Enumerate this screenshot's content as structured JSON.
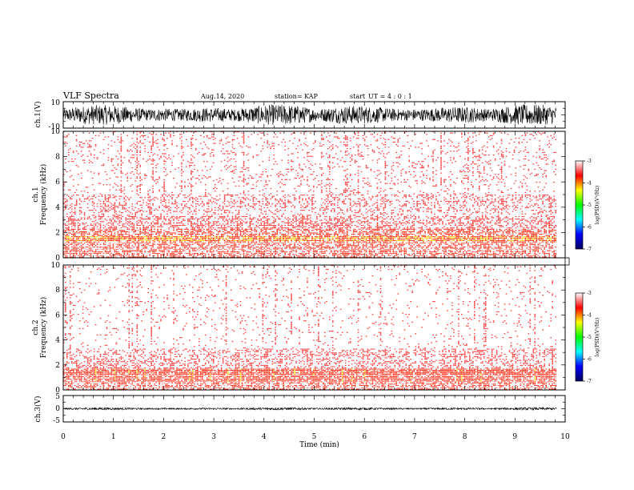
{
  "header": {
    "title": "VLF Spectra",
    "date": "Aug.14, 2020",
    "station": "station= KAP",
    "start_label": "start",
    "start_ut": "UT =  4 : 0  : 1"
  },
  "chart_data": [
    {
      "type": "line",
      "panel": "ch1-waveform",
      "ylabel": "ch.1(V)",
      "ylim": [
        -10,
        10
      ],
      "ytick_labels": [
        "10",
        "-10"
      ],
      "x_range_min": [
        0,
        9.83
      ],
      "amplitude_range": [
        -8,
        8
      ],
      "color": "#000000"
    },
    {
      "type": "heatmap",
      "panel": "ch1-spectrogram",
      "ylabel": "ch.1\nFrequency (kHz)",
      "ylabel_lines": [
        "ch.1",
        "Frequency (kHz)"
      ],
      "ylim": [
        0,
        10
      ],
      "ytick_labels": [
        "0",
        "2",
        "4",
        "6",
        "8",
        "10"
      ],
      "xlim": [
        0,
        10
      ],
      "data_extent_min": 9.83,
      "bands_khz": [
        {
          "from": 0.0,
          "to": 1.3,
          "level": 0.55
        },
        {
          "from": 1.3,
          "to": 1.7,
          "level": 0.85
        },
        {
          "from": 1.7,
          "to": 2.3,
          "level": 0.55
        },
        {
          "from": 2.3,
          "to": 3.3,
          "level": 0.4
        },
        {
          "from": 3.3,
          "to": 3.6,
          "level": 0.15
        },
        {
          "from": 3.6,
          "to": 5.0,
          "level": 0.25
        },
        {
          "from": 5.0,
          "to": 10.0,
          "level": 0.1
        }
      ],
      "colorbar": {
        "label": "log(PSD)(V²/Hz)",
        "min": -7,
        "max": -3,
        "tick_labels": [
          "-3",
          "-4",
          "-5",
          "-6",
          "-7"
        ],
        "colors": [
          "#000060",
          "#0000ff",
          "#00ffff",
          "#00ff00",
          "#ffff00",
          "#ff0000",
          "#ffffff"
        ]
      }
    },
    {
      "type": "heatmap",
      "panel": "ch2-spectrogram",
      "ylabel": "ch.2\nFrequency (kHz)",
      "ylabel_lines": [
        "ch.2",
        "Frequency (kHz)"
      ],
      "ylim": [
        0,
        10
      ],
      "ytick_labels": [
        "0",
        "2",
        "4",
        "6",
        "8",
        "10"
      ],
      "xlim": [
        0,
        10
      ],
      "data_extent_min": 9.83,
      "bands_khz": [
        {
          "from": 0.0,
          "to": 0.6,
          "level": 0.5
        },
        {
          "from": 0.6,
          "to": 1.7,
          "level": 0.8
        },
        {
          "from": 1.7,
          "to": 3.3,
          "level": 0.3
        },
        {
          "from": 3.3,
          "to": 10.0,
          "level": 0.05
        }
      ],
      "colorbar": {
        "label": "log(PSD)(V²/Hz)",
        "min": -7,
        "max": -3,
        "tick_labels": [
          "-3",
          "-4",
          "-5",
          "-6",
          "-7"
        ],
        "colors": [
          "#000060",
          "#0000ff",
          "#00ffff",
          "#00ff00",
          "#ffff00",
          "#ff0000",
          "#ffffff"
        ]
      }
    },
    {
      "type": "line",
      "panel": "ch3-waveform",
      "ylabel": "ch.3(V)",
      "ylim": [
        -5,
        5
      ],
      "ytick_labels": [
        "5",
        "0",
        "-5"
      ],
      "x_range_min": [
        0,
        9.83
      ],
      "amplitude_range": [
        -0.5,
        0.5
      ],
      "color": "#000000"
    }
  ],
  "x_axis": {
    "label": "Time (min)",
    "xlim": [
      0,
      10
    ],
    "tick_labels": [
      "0",
      "1",
      "2",
      "3",
      "4",
      "5",
      "6",
      "7",
      "8",
      "9",
      "10"
    ]
  }
}
